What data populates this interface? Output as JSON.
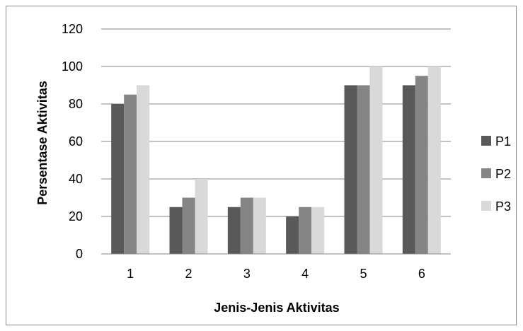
{
  "chart_data": {
    "type": "bar",
    "title": "",
    "xlabel": "Jenis-Jenis Aktivitas",
    "ylabel": "Persentase Aktivitas",
    "categories": [
      "1",
      "2",
      "3",
      "4",
      "5",
      "6"
    ],
    "series": [
      {
        "name": "P1",
        "values": [
          80,
          25,
          25,
          20,
          90,
          90
        ],
        "color": "#595959"
      },
      {
        "name": "P2",
        "values": [
          85,
          30,
          30,
          25,
          90,
          95
        ],
        "color": "#858585"
      },
      {
        "name": "P3",
        "values": [
          90,
          40,
          30,
          25,
          100,
          100
        ],
        "color": "#d9d9d9"
      }
    ],
    "ylim": [
      0,
      120
    ],
    "yticks": [
      "0",
      "20",
      "40",
      "60",
      "80",
      "100",
      "120"
    ],
    "grid": true,
    "legend": "right"
  }
}
